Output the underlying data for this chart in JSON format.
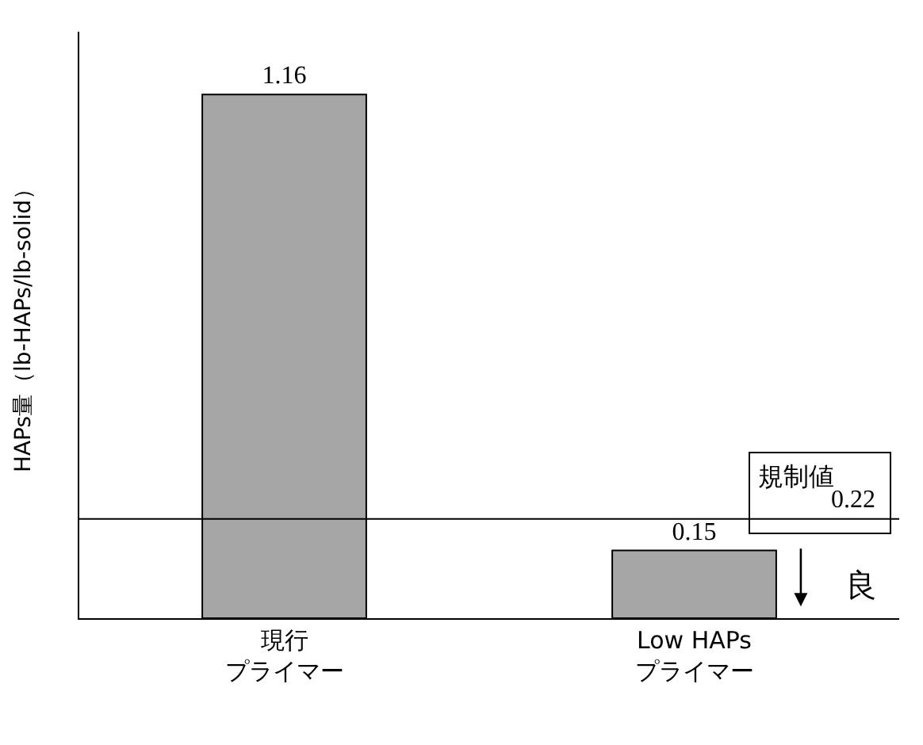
{
  "chart_data": {
    "type": "bar",
    "categories": [
      "現行プライマー",
      "Low HAPsプライマー"
    ],
    "values": [
      1.16,
      0.15
    ],
    "color": "#a6a6a6",
    "data_labels": true,
    "ylabel": "HAPs量（lb-HAPs/lb-solid）",
    "ref_lines": [
      {
        "axis": "y",
        "value": 0.22,
        "label": "規制値",
        "color": "#000000"
      }
    ],
    "annotations": [
      "良",
      {
        "text": "0.22",
        "y": 0.22
      }
    ],
    "grid": false,
    "legend": false
  }
}
